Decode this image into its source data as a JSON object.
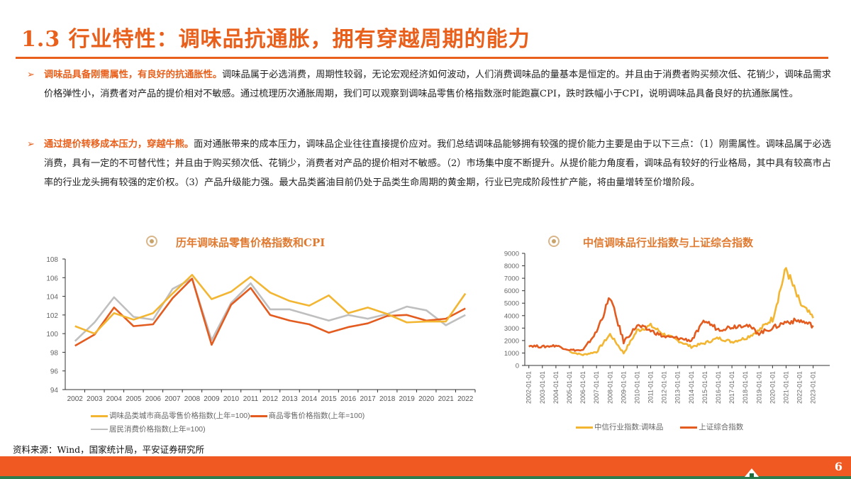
{
  "header": {
    "title": "1.3 行业特性：调味品抗通胀，拥有穿越周期的能力"
  },
  "paragraphs": [
    {
      "bullet": "➢",
      "lead": "调味品具备刚需属性，有良好的抗通胀性。",
      "body": "调味品属于必选消费，周期性较弱，无论宏观经济如何波动，人们消费调味品的量基本是恒定的。并且由于消费者购买频次低、花销少，调味品需求价格弹性小，消费者对产品的提价相对不敏感。通过梳理历次通胀周期，我们可以观察到调味品零售价格指数涨时能跑赢CPI，跌时跌幅小于CPI，说明调味品具备良好的抗通胀属性。"
    },
    {
      "bullet": "➢",
      "lead": "通过提价转移成本压力，穿越牛熊。",
      "body": "面对通胀带来的成本压力，调味品企业往往直接提价应对。我们总结调味品能够拥有较强的提价能力主要是由于以下三点：（1）刚需属性。调味品属于必选消费，具有一定的不可替代性；并且由于购买频次低、花销少，消费者对产品的提价相对不敏感。（2）市场集中度不断提升。从提价能力角度看，调味品有较好的行业格局，其中具有较高市占率的行业龙头拥有较强的定价权。（3）产品升级能力强。最大品类酱油目前仍处于品类生命周期的黄金期，行业已完成阶段性扩产能，将由量增转至价增阶段。"
    }
  ],
  "charts_meta": {
    "left_title": "历年调味品零售价格指数和CPI",
    "right_title": "中信调味品行业指数与上证综合指数",
    "left_legend": [
      {
        "label": "调味品类城市商品零售价格指数(上年=100)",
        "color": "#F2B632"
      },
      {
        "label": "商品零售价格指数(上年=100)",
        "color": "#E35B1E"
      },
      {
        "label": "居民消费价格指数(上年=100)",
        "color": "#BFBFBF"
      }
    ],
    "right_legend": [
      {
        "label": "中信行业指数:调味品",
        "color": "#F2B632"
      },
      {
        "label": "上证综合指数",
        "color": "#E35B1E"
      }
    ]
  },
  "chart_data": [
    {
      "type": "line",
      "title": "历年调味品零售价格指数和CPI",
      "xlabel": "",
      "ylabel": "",
      "ylim": [
        94,
        108
      ],
      "yticks": [
        94,
        96,
        98,
        100,
        102,
        104,
        106,
        108
      ],
      "categories": [
        "2002",
        "2003",
        "2004",
        "2005",
        "2006",
        "2007",
        "2008",
        "2009",
        "2010",
        "2011",
        "2012",
        "2013",
        "2014",
        "2015",
        "2016",
        "2017",
        "2018",
        "2019",
        "2020",
        "2021",
        "2022"
      ],
      "series": [
        {
          "name": "调味品类城市商品零售价格指数(上年=100)",
          "color": "#F2B632",
          "values": [
            100.8,
            100.0,
            102.2,
            101.5,
            102.2,
            104.3,
            106.3,
            103.7,
            104.5,
            106.1,
            104.4,
            103.5,
            103.0,
            104.1,
            102.2,
            102.8,
            102.1,
            101.2,
            101.3,
            101.3,
            104.3
          ]
        },
        {
          "name": "商品零售价格指数(上年=100)",
          "color": "#E35B1E",
          "values": [
            98.7,
            99.9,
            102.8,
            100.8,
            101.0,
            103.8,
            105.9,
            98.8,
            103.1,
            104.9,
            102.0,
            101.4,
            101.0,
            100.1,
            100.7,
            101.1,
            101.9,
            102.0,
            101.4,
            101.6,
            102.7
          ]
        },
        {
          "name": "居民消费价格指数(上年=100)",
          "color": "#BFBFBF",
          "values": [
            99.2,
            101.2,
            103.9,
            101.8,
            101.5,
            104.8,
            105.9,
            99.3,
            103.3,
            105.4,
            102.6,
            102.6,
            102.0,
            101.4,
            102.0,
            101.6,
            102.1,
            102.9,
            102.5,
            100.9,
            102.0
          ]
        }
      ],
      "legend_position": "bottom",
      "grid": false
    },
    {
      "type": "line",
      "title": "中信调味品行业指数与上证综合指数",
      "xlabel": "",
      "ylabel": "",
      "ylim": [
        0,
        9000
      ],
      "yticks": [
        0,
        1000,
        2000,
        3000,
        4000,
        5000,
        6000,
        7000,
        8000,
        9000
      ],
      "x": [
        "2002-01-01",
        "2003-01-01",
        "2004-01-01",
        "2005-01-01",
        "2006-01-01",
        "2007-01-01",
        "2008-01-01",
        "2009-01-01",
        "2010-01-01",
        "2011-01-01",
        "2012-01-01",
        "2013-01-01",
        "2014-01-01",
        "2015-01-01",
        "2016-01-01",
        "2017-01-01",
        "2018-01-01",
        "2019-01-01",
        "2020-01-01",
        "2021-01-01",
        "2022-01-01",
        "2023-01-01"
      ],
      "series": [
        {
          "name": "中信行业指数:调味品",
          "color": "#F2B632",
          "values": [
            null,
            null,
            null,
            1100,
            850,
            1100,
            2500,
            1000,
            2800,
            3200,
            2500,
            2000,
            1500,
            1800,
            2200,
            1900,
            2200,
            2800,
            3800,
            7800,
            5000,
            3800
          ]
        },
        {
          "name": "上证综合指数",
          "color": "#E35B1E",
          "values": [
            1600,
            1500,
            1600,
            1250,
            1200,
            2700,
            5500,
            1900,
            3200,
            2800,
            2300,
            2200,
            2000,
            3600,
            2900,
            3100,
            3300,
            2600,
            3000,
            3500,
            3600,
            3200
          ]
        }
      ],
      "legend_position": "bottom",
      "grid": false
    }
  ],
  "footer": {
    "source": "资料来源：Wind，国家统计局，平安证券研究所",
    "page_number": "6"
  }
}
